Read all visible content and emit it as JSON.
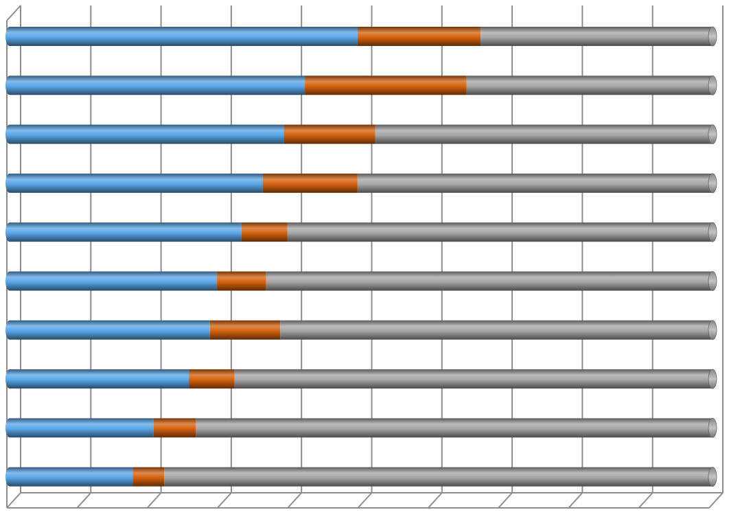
{
  "chart_data": {
    "type": "stacked-bar-100-horizontal-cylinder",
    "categories": [
      null,
      null,
      null,
      null,
      null,
      null,
      null,
      null,
      null,
      null
    ],
    "series": [
      {
        "color": "#5aa6e8",
        "values": [
          49.5,
          42,
          39,
          36,
          33,
          29.5,
          28.5,
          25.5,
          20.5,
          17.5
        ]
      },
      {
        "color": "#d4620e",
        "values": [
          17.5,
          23,
          13,
          13.5,
          6.5,
          7,
          10,
          6.5,
          6,
          4.5
        ]
      },
      {
        "color": "#a6a6a6",
        "values": [
          33,
          35,
          48,
          50.5,
          60.5,
          63.5,
          61.5,
          68,
          73.5,
          78
        ]
      }
    ],
    "xlim": [
      0,
      100
    ],
    "xticks": [
      0,
      10,
      20,
      30,
      40,
      50,
      60,
      70,
      80,
      90,
      100
    ],
    "grid": true
  }
}
